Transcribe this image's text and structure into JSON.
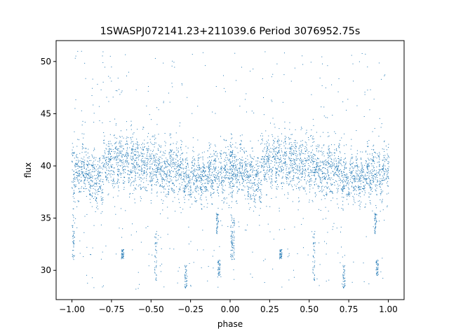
{
  "chart_data": {
    "type": "scatter",
    "title": "1SWASPJ072141.23+211039.6 Period 3076952.75s",
    "xlabel": "phase",
    "ylabel": "flux",
    "xlim": [
      -1.1,
      1.1
    ],
    "ylim": [
      27.2,
      52.0
    ],
    "xticks": [
      -1.0,
      -0.75,
      -0.5,
      -0.25,
      0.0,
      0.25,
      0.5,
      0.75,
      1.0
    ],
    "xtick_labels": [
      "−1.00",
      "−0.75",
      "−0.50",
      "−0.25",
      "0.00",
      "0.25",
      "0.50",
      "0.75",
      "1.00"
    ],
    "yticks": [
      30,
      35,
      40,
      45,
      50
    ],
    "ytick_labels": [
      "30",
      "35",
      "40",
      "45",
      "50"
    ],
    "grid": false,
    "marker_color": "#1f77b4",
    "marker": "point",
    "series": [
      {
        "fold_period": 1.0,
        "segments": [
          {
            "x": [
              -1.0,
              -0.98
            ],
            "center": 39.5,
            "spread": 2.8
          },
          {
            "x": [
              -0.98,
              -0.9
            ],
            "center": 39.5,
            "spread": 2.2
          },
          {
            "x": [
              -0.9,
              -0.8
            ],
            "center": 38.8,
            "spread": 2.2
          },
          {
            "x": [
              -0.8,
              -0.68
            ],
            "center": 40.5,
            "spread": 2.2
          },
          {
            "x": [
              -0.68,
              -0.55
            ],
            "center": 40.3,
            "spread": 2.4
          },
          {
            "x": [
              -0.55,
              -0.45
            ],
            "center": 40.0,
            "spread": 2.2
          },
          {
            "x": [
              -0.45,
              -0.3
            ],
            "center": 39.5,
            "spread": 2.2
          },
          {
            "x": [
              -0.3,
              -0.15
            ],
            "center": 39.0,
            "spread": 2.0
          },
          {
            "x": [
              -0.15,
              -0.02
            ],
            "center": 39.3,
            "spread": 2.0
          },
          {
            "x": [
              -0.02,
              0.02
            ],
            "center": 39.8,
            "spread": 2.2
          }
        ],
        "outlier_bands": [
          {
            "x": -0.99,
            "y": [
              31.0,
              35.5
            ]
          },
          {
            "x": -0.68,
            "y": [
              31.0,
              32.0
            ]
          },
          {
            "x": -0.47,
            "y": [
              28.5,
              34.0
            ]
          },
          {
            "x": -0.28,
            "y": [
              28.3,
              30.5
            ]
          },
          {
            "x": -0.08,
            "y": [
              33.5,
              35.5
            ]
          },
          {
            "x": -0.07,
            "y": [
              29.5,
              31.0
            ]
          },
          {
            "x": 0.02,
            "y": [
              31.0,
              35.0
            ]
          }
        ],
        "y_range": [
          28.2,
          51.0
        ]
      }
    ]
  }
}
